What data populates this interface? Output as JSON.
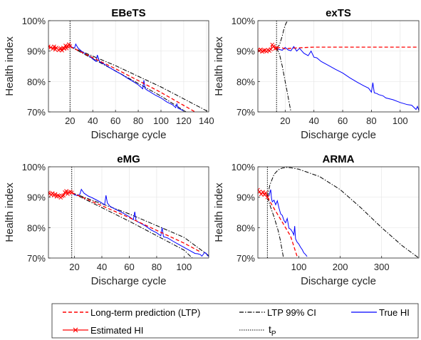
{
  "figure": {
    "legend": {
      "ltp": "Long-term prediction (LTP)",
      "ci": "LTP 99% CI",
      "true": "True HI",
      "est": "Estimated HI",
      "tp_main": "t",
      "tp_sub": "P"
    }
  },
  "colors": {
    "ltp": "#ff0000",
    "ci": "#000000",
    "true": "#0000ff",
    "est": "#ff0000",
    "tp": "#000000",
    "axes": "#262626"
  },
  "chart_data": [
    {
      "type": "line",
      "title": "EBeTS",
      "xlabel": "Discharge cycle",
      "ylabel": "Health index",
      "xlim": [
        1,
        142
      ],
      "ylim": [
        70,
        100
      ],
      "xticks": [
        20,
        40,
        60,
        80,
        100,
        120,
        140
      ],
      "yticks": [
        70,
        80,
        90,
        100
      ],
      "ytick_labels": [
        "70%",
        "80%",
        "90%",
        "100%"
      ],
      "grid": true,
      "tp": 20,
      "series": [
        {
          "key": "true",
          "x": [
            20,
            22,
            24,
            25,
            27,
            30,
            33,
            36,
            38,
            40,
            43,
            44,
            46,
            50,
            55,
            60,
            65,
            70,
            75,
            80,
            84,
            85,
            86,
            88,
            90,
            95,
            100,
            105,
            110,
            113,
            114,
            115,
            117,
            120
          ],
          "y": [
            91.8,
            91.2,
            91,
            92.3,
            91,
            90,
            89.2,
            88.6,
            88.1,
            87.4,
            86.6,
            88.7,
            86.5,
            85.7,
            84.5,
            83.4,
            82.4,
            81.2,
            80.1,
            78.9,
            77.6,
            80.4,
            77.7,
            77.1,
            76.7,
            75.5,
            74.6,
            73.3,
            72.4,
            71.4,
            72.6,
            71.2,
            70.9,
            70.3
          ]
        },
        {
          "key": "est",
          "x": [
            1,
            3,
            5,
            6,
            7,
            8,
            10,
            11,
            12,
            13,
            14,
            15,
            16,
            17,
            18,
            19,
            20
          ],
          "y": [
            91.5,
            91.2,
            90.8,
            91.5,
            90.5,
            91.1,
            90.3,
            90.7,
            90.9,
            90.2,
            91.1,
            90.8,
            91.8,
            90.9,
            91.6,
            92.2,
            91.6
          ]
        },
        {
          "key": "ltp",
          "x": [
            20,
            60,
            100,
            130
          ],
          "y": [
            91.5,
            84.2,
            76.4,
            70
          ]
        },
        {
          "key": "ci_upper",
          "x": [
            20,
            60,
            100,
            142
          ],
          "y": [
            91.5,
            85.2,
            78.2,
            70
          ]
        },
        {
          "key": "ci_lower",
          "x": [
            20,
            60,
            100,
            122
          ],
          "y": [
            91.5,
            83.5,
            75.2,
            70
          ]
        }
      ]
    },
    {
      "type": "line",
      "title": "exTS",
      "xlabel": "Discharge cycle",
      "ylabel": "Health index",
      "xlim": [
        1,
        113
      ],
      "ylim": [
        70,
        100
      ],
      "xticks": [
        20,
        40,
        60,
        80,
        100
      ],
      "yticks": [
        70,
        80,
        90,
        100
      ],
      "ytick_labels": [
        "70%",
        "80%",
        "90%",
        "100%"
      ],
      "grid": true,
      "tp": 14,
      "series": [
        {
          "key": "true",
          "x": [
            14,
            16,
            18,
            20,
            22,
            24,
            26,
            28,
            30,
            33,
            36,
            38,
            40,
            42,
            45,
            50,
            55,
            60,
            65,
            70,
            75,
            78,
            80,
            81,
            82,
            84,
            85,
            88,
            90,
            95,
            100,
            105,
            108,
            110,
            111,
            112,
            113
          ],
          "y": [
            91,
            90.5,
            90.3,
            91.2,
            90.4,
            90.1,
            91.5,
            90,
            90.9,
            89.3,
            88.5,
            90,
            88,
            87.8,
            86.6,
            85.3,
            84,
            82.8,
            81.2,
            79.8,
            78.5,
            77.8,
            76.5,
            79.6,
            76.3,
            76,
            75.7,
            75.3,
            74.6,
            74,
            73.1,
            72.4,
            72.2,
            71.3,
            70.8,
            71.8,
            70.5
          ]
        },
        {
          "key": "est",
          "x": [
            1,
            2,
            3,
            4,
            5,
            6,
            7,
            8,
            9,
            10,
            11,
            12,
            13,
            14
          ],
          "y": [
            90.4,
            90.1,
            90.5,
            89.8,
            90.2,
            90.3,
            89.9,
            90.4,
            90.1,
            90.6,
            92.1,
            91.6,
            90.8,
            91.1
          ]
        },
        {
          "key": "ltp",
          "x": [
            14,
            17,
            20,
            23,
            30,
            40,
            50,
            60,
            80,
            100,
            113
          ],
          "y": [
            91.1,
            91.2,
            90.7,
            90.9,
            91.1,
            91.3,
            91.3,
            91.3,
            91.3,
            91.3,
            91.3
          ]
        },
        {
          "key": "ci_upper",
          "x": [
            14,
            16,
            18,
            19,
            20,
            21,
            22
          ],
          "y": [
            91,
            92,
            95,
            97,
            98.5,
            99.5,
            100
          ]
        },
        {
          "key": "ci_lower",
          "x": [
            14,
            16,
            18,
            20,
            21,
            22,
            23,
            24
          ],
          "y": [
            91,
            89,
            85,
            80,
            77.5,
            75,
            72.5,
            70
          ]
        }
      ]
    },
    {
      "type": "line",
      "title": "eMG",
      "xlabel": "Discharge cycle",
      "ylabel": "Health index",
      "xlim": [
        1,
        118
      ],
      "ylim": [
        70,
        100
      ],
      "xticks": [
        20,
        40,
        60,
        80,
        100
      ],
      "yticks": [
        70,
        80,
        90,
        100
      ],
      "ytick_labels": [
        "70%",
        "80%",
        "90%",
        "100%"
      ],
      "grid": true,
      "tp": 18,
      "series": [
        {
          "key": "true",
          "x": [
            18,
            20,
            22,
            24,
            25,
            27,
            30,
            33,
            36,
            39,
            42,
            43,
            44,
            46,
            50,
            55,
            60,
            63,
            64,
            65,
            68,
            72,
            76,
            80,
            83,
            84,
            85,
            88,
            92,
            96,
            100,
            104,
            108,
            110,
            112,
            113,
            115,
            116,
            117,
            118
          ],
          "y": [
            91.6,
            90.8,
            90.5,
            91,
            92.6,
            91.3,
            90.4,
            89.8,
            89.1,
            88.4,
            87.5,
            90.6,
            88.1,
            87,
            86,
            84.9,
            83.6,
            82.6,
            85.2,
            82.2,
            81.5,
            80.5,
            79.2,
            78.3,
            77.3,
            80,
            77,
            76.6,
            75.5,
            74.5,
            73.5,
            72.5,
            71.5,
            71.4,
            71.1,
            70.6,
            71.8,
            71.6,
            70.9,
            70.5
          ]
        },
        {
          "key": "est",
          "x": [
            1,
            2,
            3,
            4,
            5,
            6,
            7,
            8,
            9,
            10,
            11,
            12,
            13,
            14,
            15,
            16,
            17,
            18
          ],
          "y": [
            91.5,
            91.2,
            90.8,
            91.3,
            90.6,
            91,
            90.2,
            90.6,
            90.4,
            89.9,
            90.4,
            90.6,
            91.6,
            92,
            91.1,
            91.6,
            91.8,
            91.5
          ]
        },
        {
          "key": "ltp",
          "x": [
            18,
            60,
            100,
            112
          ],
          "y": [
            91.5,
            83.3,
            74.9,
            72
          ]
        },
        {
          "key": "ci_upper",
          "x": [
            18,
            60,
            100,
            118
          ],
          "y": [
            91.5,
            84.5,
            76.8,
            70.8
          ]
        },
        {
          "key": "ci_lower",
          "x": [
            18,
            60,
            100,
            106
          ],
          "y": [
            91.5,
            82.1,
            72.6,
            70
          ]
        }
      ]
    },
    {
      "type": "line",
      "title": "ARMA",
      "xlabel": "Discharge cycle",
      "ylabel": "Health index",
      "xlim": [
        1,
        390
      ],
      "ylim": [
        70,
        100
      ],
      "xticks": [
        100,
        200,
        300
      ],
      "yticks": [
        70,
        80,
        90,
        100
      ],
      "ytick_labels": [
        "70%",
        "80%",
        "90%",
        "100%"
      ],
      "grid": true,
      "tp": 24,
      "series": [
        {
          "key": "true",
          "x": [
            24,
            28,
            32,
            34,
            36,
            40,
            44,
            48,
            52,
            56,
            60,
            64,
            68,
            72,
            76,
            80,
            84,
            88,
            90,
            92,
            96,
            100,
            104,
            108,
            112,
            116,
            120
          ],
          "y": [
            90,
            90.5,
            92.5,
            89.5,
            88.5,
            89,
            87.5,
            88.8,
            86.5,
            84.5,
            84,
            82.4,
            81.6,
            83,
            79.8,
            79.5,
            78.7,
            77.6,
            80.5,
            76.3,
            75.2,
            74.6,
            73.6,
            72.8,
            71.7,
            71.2,
            70.5
          ]
        },
        {
          "key": "est",
          "x": [
            1,
            5,
            9,
            13,
            17,
            20,
            24
          ],
          "y": [
            92.4,
            91.8,
            91,
            91.7,
            90.8,
            91.4,
            90
          ]
        },
        {
          "key": "ltp",
          "x": [
            24,
            40,
            60,
            80,
            97
          ],
          "y": [
            90,
            86.3,
            81.8,
            77.2,
            70
          ]
        },
        {
          "key": "ci_upper",
          "x": [
            24,
            30,
            40,
            50,
            60,
            70,
            80,
            100,
            150,
            200,
            250,
            300,
            350,
            390
          ],
          "y": [
            90,
            94,
            97.5,
            99,
            99.6,
            99.8,
            99.7,
            99.2,
            96.8,
            92.5,
            86.5,
            80,
            74,
            70
          ]
        },
        {
          "key": "ci_lower",
          "x": [
            24,
            30,
            40,
            50,
            55,
            63
          ],
          "y": [
            90,
            87.5,
            83.5,
            79,
            76,
            70
          ]
        }
      ]
    }
  ]
}
